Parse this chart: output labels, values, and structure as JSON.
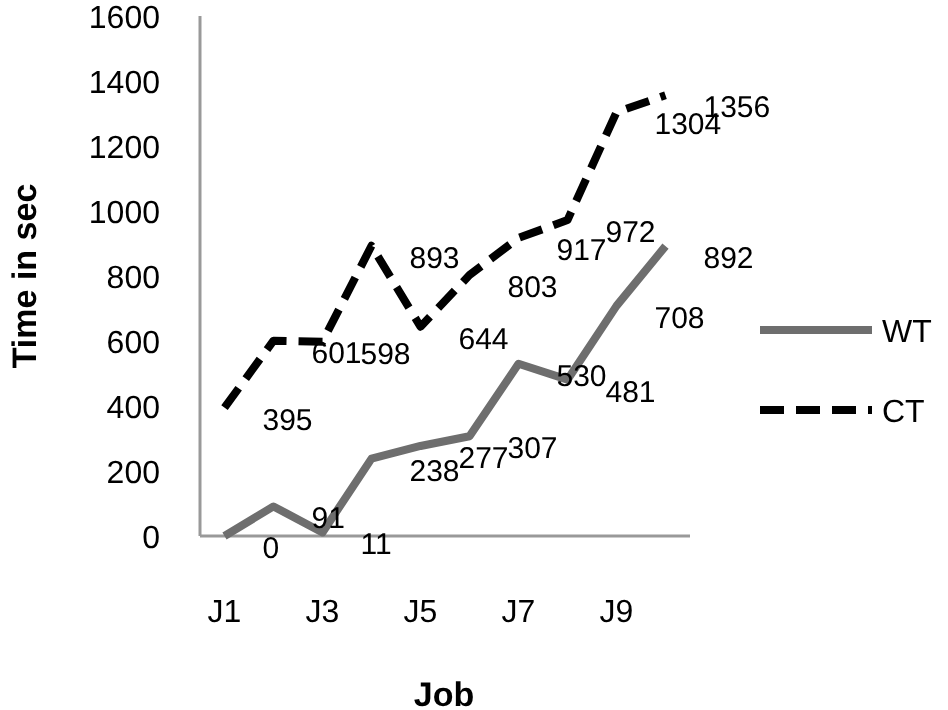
{
  "chart_data": {
    "type": "line",
    "xlabel": "Job",
    "ylabel": "Time in sec",
    "categories": [
      "J1",
      null,
      "J3",
      null,
      "J5",
      null,
      "J7",
      null,
      "J9",
      null
    ],
    "series": [
      {
        "name": "WT",
        "color": "#6e6e6e",
        "line_style": "solid",
        "values": [
          0,
          91,
          11,
          238,
          277,
          307,
          530,
          481,
          708,
          892
        ]
      },
      {
        "name": "CT",
        "color": "#000000",
        "line_style": "dashed",
        "values": [
          395,
          601,
          598,
          893,
          644,
          803,
          917,
          972,
          1304,
          1356
        ]
      }
    ],
    "ylim": [
      0,
      1600
    ],
    "yticks": [
      0,
      200,
      400,
      600,
      800,
      1000,
      1200,
      1400,
      1600
    ],
    "grid": false,
    "legend": "right",
    "marker": "none",
    "data_labels": true
  }
}
